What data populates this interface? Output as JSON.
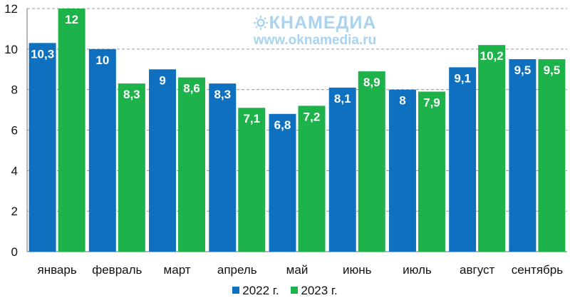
{
  "watermark": {
    "brand": "КНАМЕДИА",
    "url": "www.oknamedia.ru"
  },
  "colors": {
    "series_2022": "#0f70c0",
    "series_2023": "#1eb24b"
  },
  "chart_data": {
    "type": "bar",
    "title": "",
    "xlabel": "",
    "ylabel": "",
    "ylim": [
      0,
      12
    ],
    "yticks": [
      "0",
      "2",
      "4",
      "6",
      "8",
      "10",
      "12"
    ],
    "grid": true,
    "legend_position": "bottom",
    "categories": [
      "январь",
      "февраль",
      "март",
      "апрель",
      "май",
      "июнь",
      "июль",
      "август",
      "сентябрь"
    ],
    "series": [
      {
        "name": "2022 г.",
        "values": [
          10.3,
          10,
          9,
          8.3,
          6.8,
          8.1,
          8,
          9.1,
          9.5
        ],
        "labels": [
          "10,3",
          "10",
          "9",
          "8,3",
          "6,8",
          "8,1",
          "8",
          "9,1",
          "9,5"
        ]
      },
      {
        "name": "2023 г.",
        "values": [
          12,
          8.3,
          8.6,
          7.1,
          7.2,
          8.9,
          7.9,
          10.2,
          9.5
        ],
        "labels": [
          "12",
          "8,3",
          "8,6",
          "7,1",
          "7,2",
          "8,9",
          "7,9",
          "10,2",
          "9,5"
        ]
      }
    ]
  }
}
